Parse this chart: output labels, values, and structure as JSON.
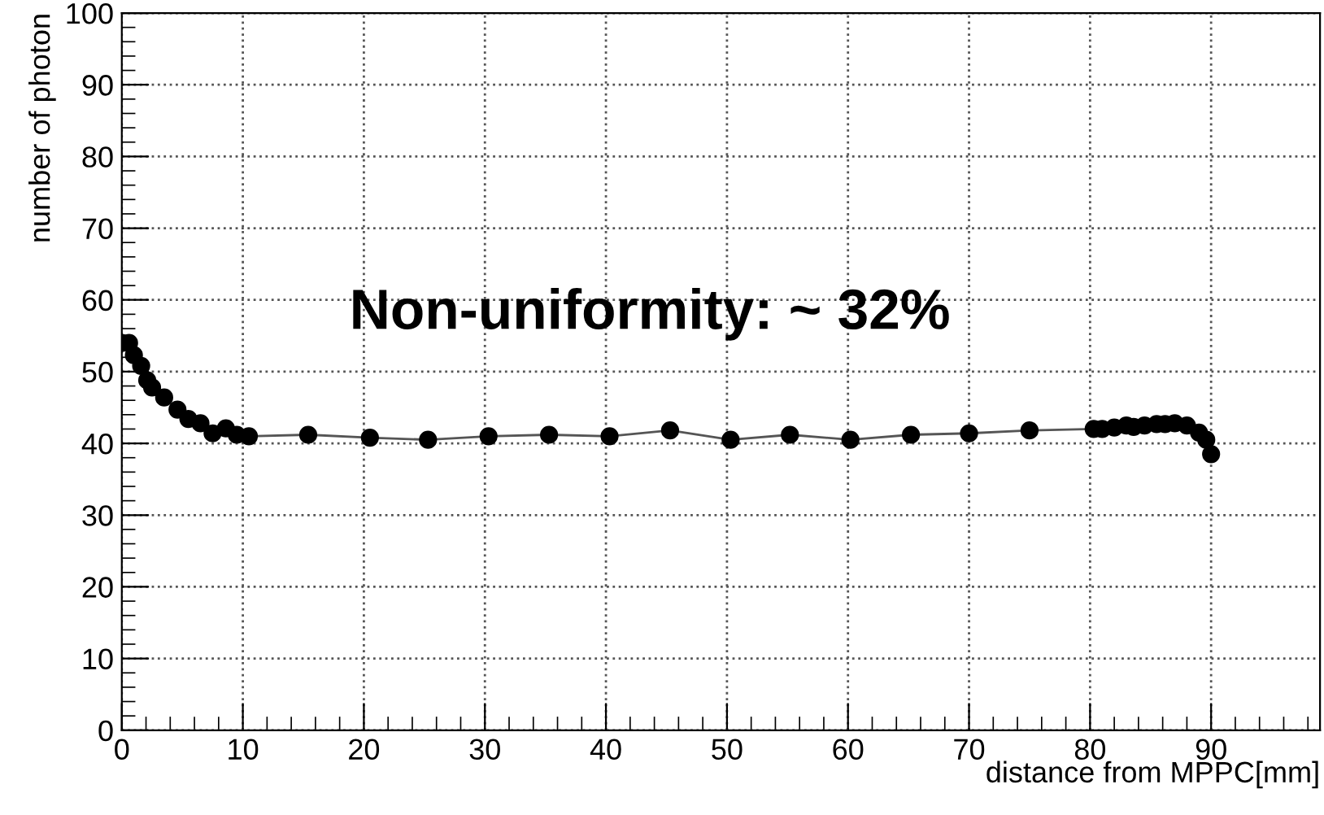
{
  "chart_data": {
    "type": "line",
    "xlabel": "distance from MPPC[mm]",
    "ylabel": "number of photon",
    "annotations": [
      "Non-uniformity: ~ 32%"
    ],
    "series": [
      {
        "color": "#000000",
        "x": [
          0,
          0.6,
          1.0,
          1.6,
          2.1,
          2.5,
          3.5,
          4.6,
          5.5,
          6.5,
          7.5,
          8.6,
          9.5,
          10.5,
          15.4,
          20.5,
          25.3,
          30.3,
          35.3,
          40.3,
          45.3,
          50.3,
          55.2,
          60.2,
          65.2,
          70.0,
          75.0,
          80.3,
          81.0,
          82.0,
          83.0,
          83.6,
          84.5,
          85.5,
          86.2,
          87.0,
          88.0,
          89.0,
          89.6,
          90.0
        ],
        "values": [
          54.0,
          54.0,
          52.3,
          50.8,
          48.8,
          47.8,
          46.4,
          44.7,
          43.4,
          42.8,
          41.4,
          42.1,
          41.2,
          41.0,
          41.2,
          40.8,
          40.5,
          41.0,
          41.2,
          41.0,
          41.8,
          40.5,
          41.2,
          40.5,
          41.2,
          41.4,
          41.8,
          42.0,
          42.0,
          42.2,
          42.5,
          42.3,
          42.5,
          42.7,
          42.7,
          42.8,
          42.5,
          41.5,
          40.5,
          38.5
        ]
      }
    ],
    "xlim": [
      0,
      99
    ],
    "ylim": [
      0,
      100
    ],
    "xticks": [
      0,
      10,
      20,
      30,
      40,
      50,
      60,
      70,
      80,
      90
    ],
    "yticks": [
      0,
      10,
      20,
      30,
      40,
      50,
      60,
      70,
      80,
      90,
      100
    ],
    "grid": true,
    "marker": "circle",
    "line_style": "solid"
  }
}
